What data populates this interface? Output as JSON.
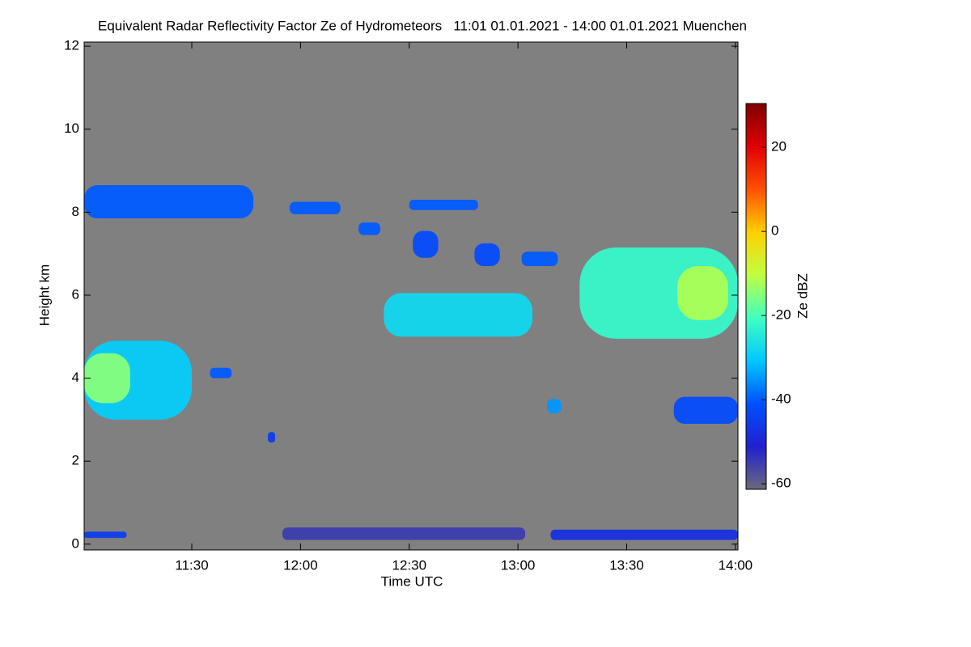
{
  "chart_data": {
    "type": "time-height",
    "title": "Equivalent Radar Reflectivity Factor Ze of Hydrometeors   11:01 01.01.2021 - 14:00 01.01.2021 Muenchen",
    "x_label": "Time UTC",
    "y_label": "Height km",
    "colorbar_label": "Ze dBZ",
    "background": "#808080",
    "xlim": [
      660.3,
      840.7
    ],
    "xticks": [
      {
        "value": 690,
        "label": "11:30"
      },
      {
        "value": 720,
        "label": "12:00"
      },
      {
        "value": 750,
        "label": "12:30"
      },
      {
        "value": 780,
        "label": "13:00"
      },
      {
        "value": 810,
        "label": "13:30"
      },
      {
        "value": 840,
        "label": "14:00"
      }
    ],
    "ylim": [
      -0.14,
      12.1
    ],
    "yticks": [
      0,
      2,
      4,
      6,
      8,
      10,
      12
    ],
    "clim": [
      -61.3,
      30.4
    ],
    "cticks": [
      -60,
      -40,
      -20,
      0,
      20
    ],
    "colormap": [
      "#6a6a7a",
      "#2020d0",
      "#0050ff",
      "#00c8ff",
      "#40ffc0",
      "#c0ff40",
      "#ffd000",
      "#ff5000",
      "#e00000",
      "#800000"
    ],
    "echoes": [
      {
        "t0": 660.3,
        "t1": 707,
        "h0": 7.85,
        "h1": 8.65,
        "dbz": -40
      },
      {
        "t0": 660.3,
        "t1": 690,
        "h0": 3.0,
        "h1": 4.9,
        "dbz": -30
      },
      {
        "t0": 660.3,
        "t1": 673,
        "h0": 3.4,
        "h1": 4.6,
        "dbz": -15
      },
      {
        "t0": 695,
        "t1": 701,
        "h0": 4.0,
        "h1": 4.25,
        "dbz": -40
      },
      {
        "t0": 743,
        "t1": 784,
        "h0": 5.0,
        "h1": 6.05,
        "dbz": -28
      },
      {
        "t0": 797,
        "t1": 840.7,
        "h0": 4.95,
        "h1": 7.15,
        "dbz": -22
      },
      {
        "t0": 824,
        "t1": 838,
        "h0": 5.4,
        "h1": 6.7,
        "dbz": -12
      },
      {
        "t0": 823,
        "t1": 840.7,
        "h0": 2.9,
        "h1": 3.55,
        "dbz": -42
      },
      {
        "t0": 788,
        "t1": 792,
        "h0": 3.15,
        "h1": 3.5,
        "dbz": -35
      },
      {
        "t0": 717,
        "t1": 731,
        "h0": 7.95,
        "h1": 8.25,
        "dbz": -40
      },
      {
        "t0": 750,
        "t1": 769,
        "h0": 8.05,
        "h1": 8.3,
        "dbz": -40
      },
      {
        "t0": 736,
        "t1": 742,
        "h0": 7.45,
        "h1": 7.75,
        "dbz": -40
      },
      {
        "t0": 751,
        "t1": 758,
        "h0": 6.9,
        "h1": 7.55,
        "dbz": -42
      },
      {
        "t0": 781,
        "t1": 791,
        "h0": 6.7,
        "h1": 7.05,
        "dbz": -40
      },
      {
        "t0": 768,
        "t1": 775,
        "h0": 6.7,
        "h1": 7.25,
        "dbz": -42
      },
      {
        "t0": 660.3,
        "t1": 672,
        "h0": 0.15,
        "h1": 0.3,
        "dbz": -45
      },
      {
        "t0": 715,
        "t1": 782,
        "h0": 0.1,
        "h1": 0.4,
        "dbz": -55
      },
      {
        "t0": 789,
        "t1": 840.7,
        "h0": 0.1,
        "h1": 0.35,
        "dbz": -48
      },
      {
        "t0": 711,
        "t1": 713,
        "h0": 2.45,
        "h1": 2.7,
        "dbz": -45
      }
    ]
  }
}
